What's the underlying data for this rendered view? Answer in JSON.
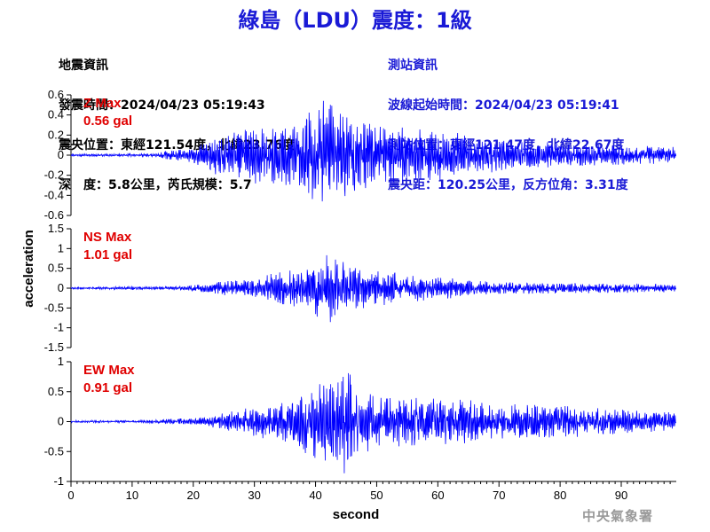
{
  "title": "綠島（LDU）震度：1級",
  "quake_info": {
    "heading": "地震資訊",
    "origin_time": "發震時間：2024/04/23 05:19:43",
    "epicenter": "震央位置：東經121.54度，北緯23.76度",
    "depth_magnitude": "深　度：5.8公里，芮氏規模：5.7"
  },
  "station_info": {
    "heading": "測站資訊",
    "arrival_time": "波線起始時間：2024/04/23 05:19:41",
    "location": "測站位置：東經121.47度，北緯22.67度",
    "distance": "震央距：120.25公里，反方位角：3.31度"
  },
  "agency": "中央氣象署",
  "colors": {
    "trace": "#0000ff",
    "title": "#1a1ad6",
    "max_label": "#e00000",
    "axis": "#000000"
  },
  "chart_data": {
    "type": "line",
    "xlabel": "second",
    "ylabel": "acceleration",
    "xlim": [
      0,
      99
    ],
    "x_ticks": [
      "0",
      "10",
      "20",
      "30",
      "40",
      "50",
      "60",
      "70",
      "80",
      "90"
    ],
    "grid": false,
    "panels": [
      {
        "name": "Z",
        "label": "Z Max",
        "max_value": "0.56 gal",
        "ylim": [
          -0.6,
          0.6
        ],
        "y_ticks": [
          "0.6",
          "0.4",
          "0.2",
          "0",
          "-0.2",
          "-0.4",
          "-0.6"
        ],
        "envelope": [
          [
            0,
            0.012
          ],
          [
            10,
            0.014
          ],
          [
            14,
            0.016
          ],
          [
            16,
            0.05
          ],
          [
            20,
            0.07
          ],
          [
            22,
            0.14
          ],
          [
            24,
            0.2
          ],
          [
            30,
            0.28
          ],
          [
            35,
            0.32
          ],
          [
            38,
            0.4
          ],
          [
            40,
            0.45
          ],
          [
            41,
            0.55
          ],
          [
            43,
            0.48
          ],
          [
            46,
            0.36
          ],
          [
            50,
            0.3
          ],
          [
            55,
            0.27
          ],
          [
            60,
            0.25
          ],
          [
            70,
            0.16
          ],
          [
            75,
            0.14
          ],
          [
            80,
            0.12
          ],
          [
            90,
            0.1
          ],
          [
            99,
            0.08
          ]
        ]
      },
      {
        "name": "NS",
        "label": "NS Max",
        "max_value": "1.01 gal",
        "ylim": [
          -1.5,
          1.5
        ],
        "y_ticks": [
          "1.5",
          "1",
          "0.5",
          "0",
          "-0.5",
          "-1",
          "-1.5"
        ],
        "envelope": [
          [
            0,
            0.03
          ],
          [
            14,
            0.04
          ],
          [
            18,
            0.06
          ],
          [
            22,
            0.1
          ],
          [
            25,
            0.18
          ],
          [
            30,
            0.25
          ],
          [
            35,
            0.45
          ],
          [
            38,
            0.55
          ],
          [
            40,
            0.7
          ],
          [
            42,
            1.0
          ],
          [
            44,
            0.7
          ],
          [
            46,
            0.55
          ],
          [
            50,
            0.45
          ],
          [
            55,
            0.35
          ],
          [
            60,
            0.28
          ],
          [
            65,
            0.22
          ],
          [
            70,
            0.15
          ],
          [
            80,
            0.13
          ],
          [
            90,
            0.12
          ],
          [
            99,
            0.1
          ]
        ]
      },
      {
        "name": "EW",
        "label": "EW Max",
        "max_value": "0.91 gal",
        "ylim": [
          -1,
          1
        ],
        "y_ticks": [
          "1",
          "0.5",
          "0",
          "-0.5",
          "-1"
        ],
        "envelope": [
          [
            0,
            0.02
          ],
          [
            10,
            0.02
          ],
          [
            15,
            0.04
          ],
          [
            20,
            0.06
          ],
          [
            22,
            0.08
          ],
          [
            25,
            0.14
          ],
          [
            30,
            0.25
          ],
          [
            35,
            0.35
          ],
          [
            38,
            0.5
          ],
          [
            40,
            0.65
          ],
          [
            43,
            0.65
          ],
          [
            45,
            0.9
          ],
          [
            47,
            0.55
          ],
          [
            50,
            0.45
          ],
          [
            55,
            0.4
          ],
          [
            60,
            0.38
          ],
          [
            65,
            0.36
          ],
          [
            70,
            0.3
          ],
          [
            80,
            0.28
          ],
          [
            90,
            0.22
          ],
          [
            99,
            0.15
          ]
        ]
      }
    ]
  }
}
